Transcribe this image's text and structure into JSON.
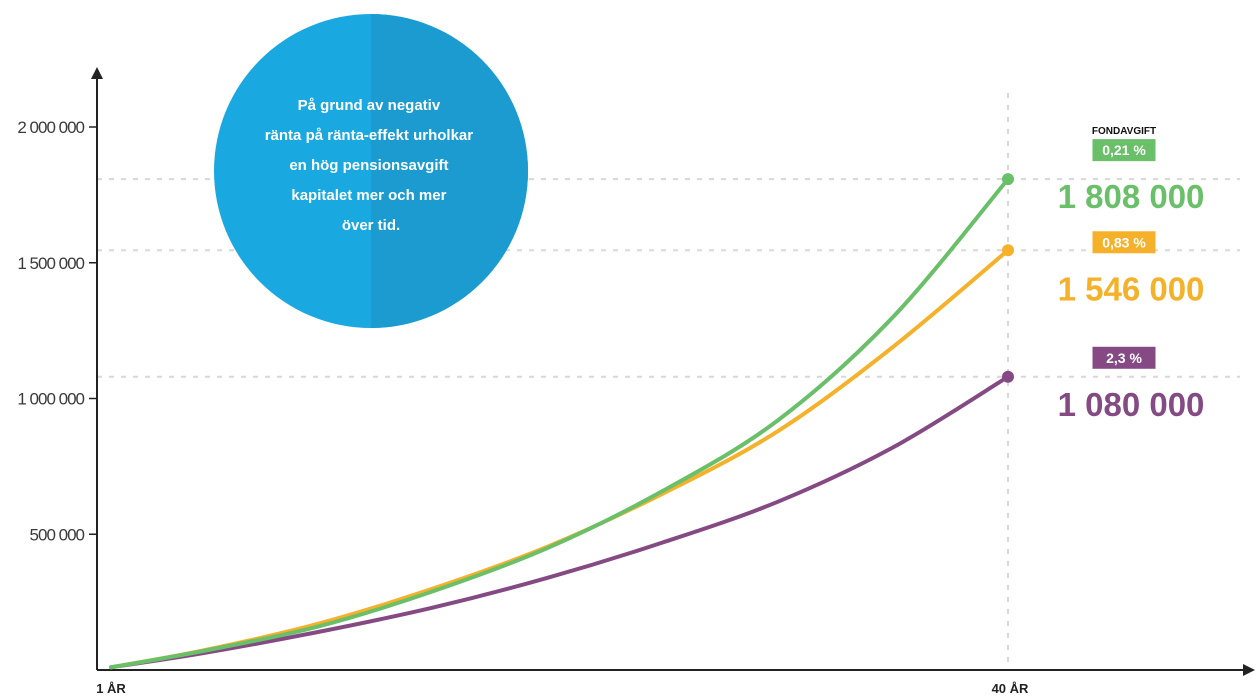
{
  "chart_data": {
    "type": "line",
    "xlabel": "",
    "ylabel": "",
    "x_tick_labels": [
      "1 ÅR",
      "40 ÅR"
    ],
    "x_range": [
      1,
      40
    ],
    "y_ticks": [
      500000,
      1000000,
      1500000,
      2000000
    ],
    "y_tick_labels": [
      "500 000",
      "1 000 000",
      "1 500 000",
      "2 000 000"
    ],
    "ylim": [
      0,
      2000000
    ],
    "grid": "dashed guide lines at end values and at x = 40",
    "legend_title": "FONDAVGIFT",
    "annotation": [
      "På grund av negativ",
      "ränta på ränta-effekt urholkar",
      "en hög pensionsavgift",
      "kapitalet mer och mer",
      "över tid."
    ],
    "series": [
      {
        "name": "0,21 %",
        "color": "#6abf69",
        "end_label": "1 808 000",
        "x": [
          1,
          5,
          10,
          15,
          20,
          25,
          30,
          35,
          40
        ],
        "values": [
          10000,
          70000,
          160000,
          290000,
          450000,
          660000,
          920000,
          1300000,
          1808000
        ]
      },
      {
        "name": "0,83 %",
        "color": "#f5b12a",
        "end_label": "1 546 000",
        "x": [
          1,
          5,
          10,
          15,
          20,
          25,
          30,
          35,
          40
        ],
        "values": [
          10000,
          72000,
          170000,
          300000,
          455000,
          650000,
          880000,
          1190000,
          1546000
        ]
      },
      {
        "name": "2,3 %",
        "color": "#854a84",
        "end_label": "1 080 000",
        "x": [
          1,
          5,
          10,
          15,
          20,
          25,
          30,
          35,
          40
        ],
        "values": [
          10000,
          62000,
          140000,
          230000,
          340000,
          470000,
          620000,
          820000,
          1080000
        ]
      }
    ],
    "colors": {
      "callout_left": "#1aa8e0",
      "callout_right": "#1c9bd1",
      "axis": "#222222",
      "guide": "#d8d8d8"
    }
  }
}
